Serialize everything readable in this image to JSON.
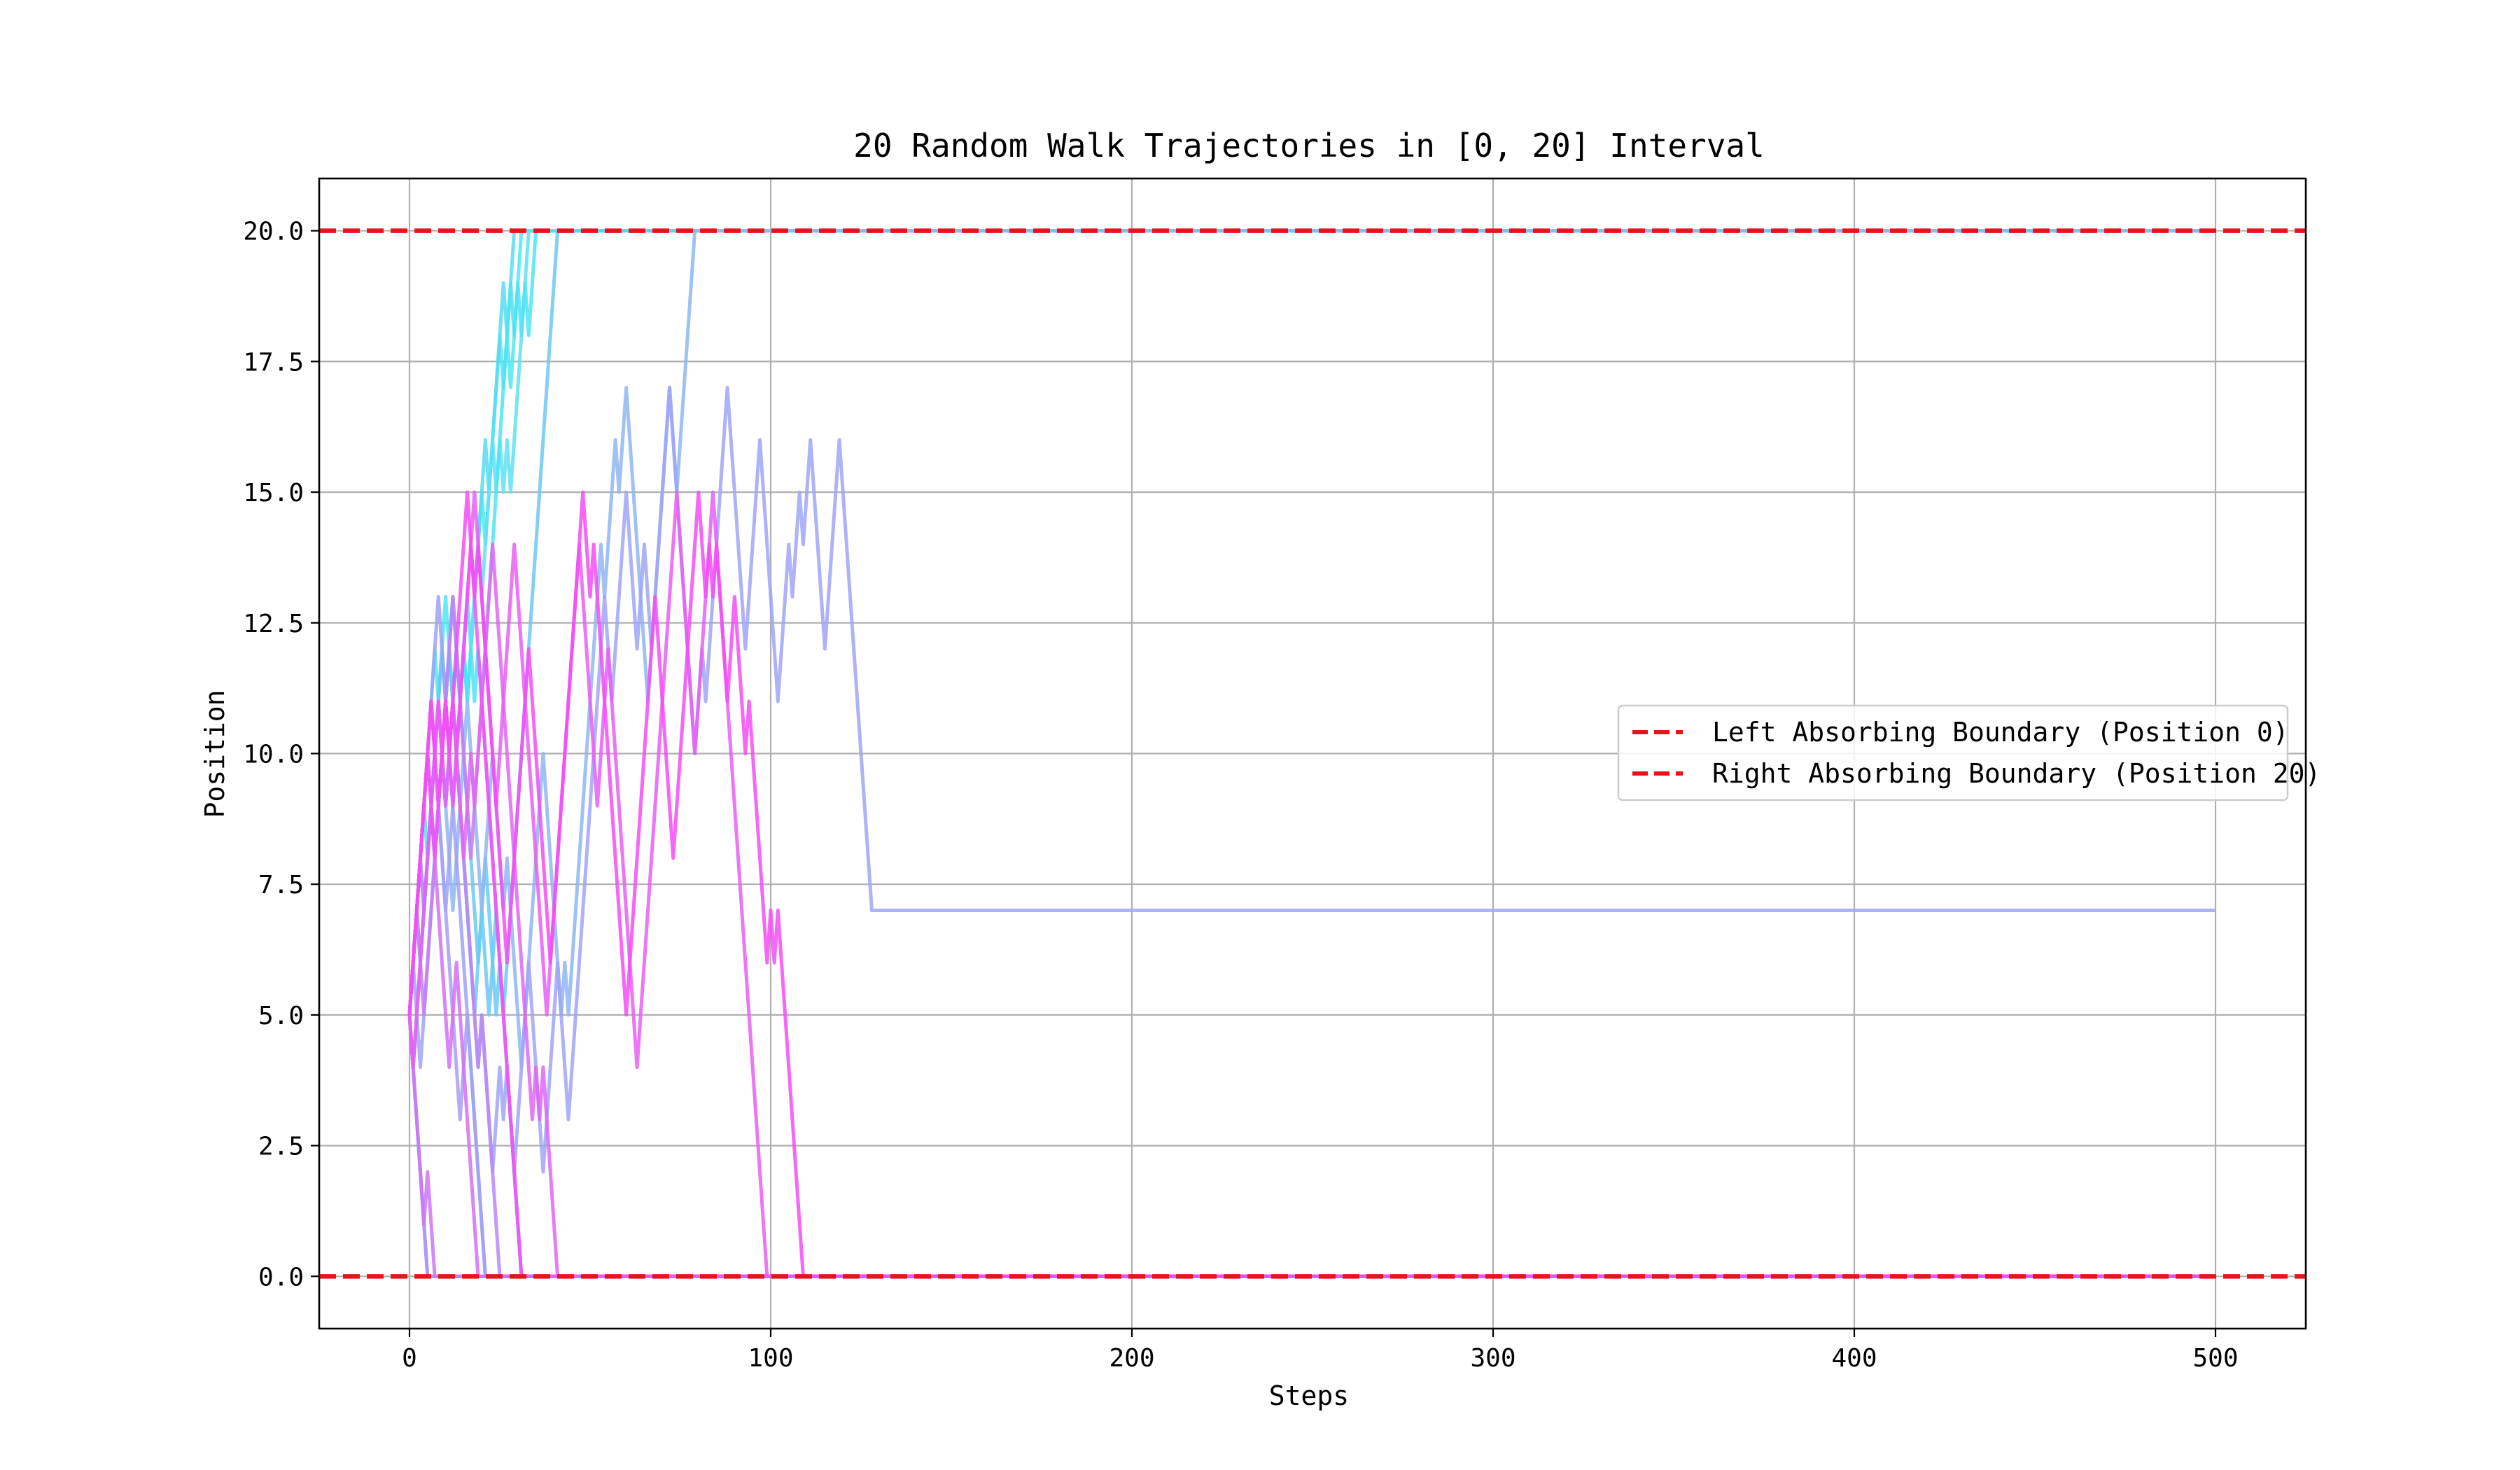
{
  "chart_data": {
    "type": "line",
    "title": "20 Random Walk Trajectories in [0, 20] Interval",
    "xlabel": "Steps",
    "ylabel": "Position",
    "xlim": [
      -25,
      525
    ],
    "ylim": [
      -1,
      21
    ],
    "xticks": [
      0,
      100,
      200,
      300,
      400,
      500
    ],
    "xtick_labels": [
      "0",
      "100",
      "200",
      "300",
      "400",
      "500"
    ],
    "yticks": [
      0,
      2.5,
      5,
      7.5,
      10,
      12.5,
      15,
      17.5,
      20
    ],
    "ytick_labels": [
      "0.0",
      "2.5",
      "5.0",
      "7.5",
      "10.0",
      "12.5",
      "15.0",
      "17.5",
      "20.0"
    ],
    "grid": true,
    "legend_position": "center-right",
    "boundaries": [
      {
        "name": "Left Absorbing Boundary (Position 0)",
        "y": 0,
        "color": "#e8141c",
        "style": "dashed"
      },
      {
        "name": "Right Absorbing Boundary (Position 20)",
        "y": 20,
        "color": "#e8141c",
        "style": "dashed"
      }
    ],
    "series": [
      {
        "color": "#4fe8f2",
        "values": [
          5,
          6,
          7,
          8,
          9,
          10,
          11,
          12,
          11,
          12,
          13,
          12,
          13,
          12,
          11,
          12,
          11,
          12,
          13,
          14,
          15,
          14,
          15,
          16,
          17,
          18,
          17,
          18,
          17,
          18,
          19,
          20
        ]
      },
      {
        "color": "#57dcf2",
        "values": [
          5,
          6,
          7,
          6,
          7,
          8,
          9,
          8,
          9,
          10,
          9,
          10,
          11,
          10,
          11,
          12,
          11,
          12,
          13,
          14,
          15,
          16,
          15,
          16,
          17,
          18,
          19,
          18,
          19,
          20
        ]
      },
      {
        "color": "#5ee2f3",
        "values": [
          5,
          4,
          5,
          6,
          7,
          8,
          9,
          8,
          9,
          10,
          11,
          12,
          11,
          12,
          11,
          12,
          13,
          12,
          13,
          14,
          13,
          14,
          15,
          16,
          15,
          16,
          15,
          16,
          15,
          16,
          17,
          18,
          19,
          20
        ]
      },
      {
        "color": "#4de4f2",
        "values": [
          5,
          6,
          7,
          8,
          9,
          8,
          9,
          10,
          11,
          12,
          11,
          12,
          11,
          12,
          11,
          12,
          11,
          12,
          11,
          12,
          11,
          12,
          13,
          14,
          15,
          16,
          17,
          18,
          19,
          18,
          19,
          18,
          19,
          18,
          19,
          20
        ]
      },
      {
        "color": "#6cc8f4",
        "values": [
          5,
          6,
          7,
          8,
          9,
          10,
          9,
          10,
          11,
          12,
          11,
          12,
          13,
          12,
          11,
          10,
          9,
          8,
          7,
          6,
          7,
          6,
          5,
          6,
          7,
          6,
          5,
          6,
          7,
          8,
          9,
          10,
          11,
          12,
          13,
          14,
          15,
          16,
          17,
          18,
          19,
          20
        ]
      },
      {
        "color": "#66cdf2",
        "values": [
          5,
          6,
          7,
          8,
          7,
          8,
          9,
          8,
          9,
          10,
          11,
          12,
          11,
          10,
          9,
          8,
          7,
          6,
          5,
          6,
          7,
          8,
          7,
          6,
          5,
          6,
          5,
          4,
          3,
          2,
          1,
          0
        ]
      },
      {
        "color": "#8fb6f2",
        "values": [
          5,
          4,
          5,
          6,
          7,
          8,
          9,
          10,
          11,
          10,
          9,
          8,
          7,
          8,
          9,
          10,
          11,
          10,
          9,
          8,
          7,
          8,
          9,
          10,
          9,
          8,
          7,
          8,
          7,
          6,
          5,
          4,
          5,
          6,
          7,
          8,
          9,
          10,
          9,
          8,
          7,
          6,
          5,
          6,
          5,
          6,
          7,
          8,
          9,
          10,
          11,
          12,
          13,
          14,
          13,
          14,
          15,
          16,
          15,
          16,
          17,
          16,
          15,
          14,
          13,
          12,
          11,
          12,
          13,
          14,
          15,
          16,
          17,
          16,
          15,
          16,
          17,
          18,
          19,
          20
        ]
      },
      {
        "color": "#9aa9f3",
        "values": [
          5,
          4,
          3,
          2,
          1,
          0
        ]
      },
      {
        "color": "#a79df3",
        "values": [
          5,
          6,
          7,
          8,
          9,
          10,
          11,
          10,
          9,
          8,
          7,
          6,
          5,
          4,
          3,
          4,
          5,
          4,
          3,
          2,
          1,
          0
        ]
      },
      {
        "color": "#a0a4f5",
        "values": [
          5,
          6,
          5,
          4,
          5,
          6,
          7,
          8,
          9,
          8,
          7,
          8,
          9,
          10,
          9,
          8,
          7,
          6,
          5,
          4,
          5,
          4,
          3,
          2,
          3,
          4,
          3,
          4,
          3,
          2,
          3,
          4,
          5,
          6,
          5,
          4,
          3,
          2,
          3,
          4,
          5,
          6,
          5,
          4,
          3,
          4,
          5,
          6,
          7,
          8,
          9,
          10,
          11,
          12,
          13,
          12,
          11,
          12,
          13,
          14,
          15,
          14,
          13,
          12,
          13,
          14,
          13,
          12,
          13,
          14,
          15,
          16,
          17,
          16,
          15,
          14,
          13,
          12,
          11,
          10,
          11,
          12,
          11,
          12,
          13,
          14,
          15,
          16,
          17,
          16,
          15,
          14,
          13,
          12,
          13,
          14,
          15,
          16,
          15,
          14,
          13,
          12,
          11,
          12,
          13,
          14,
          13,
          14,
          15,
          14,
          15,
          16,
          15,
          14,
          13,
          12,
          13,
          14,
          15,
          16,
          15,
          14,
          13,
          12,
          11,
          10,
          9,
          8,
          7
        ]
      },
      {
        "color": "#9fa2f6",
        "values": [
          5,
          6,
          7,
          8,
          9,
          10,
          11,
          12,
          13,
          12,
          11,
          10,
          9,
          8,
          7,
          6,
          5,
          4,
          3,
          2,
          1,
          0
        ]
      },
      {
        "color": "#b094f4",
        "values": [
          5,
          4,
          3,
          2,
          1,
          0
        ]
      },
      {
        "color": "#bb87f4",
        "values": [
          5,
          6,
          7,
          8,
          7,
          8,
          9,
          10,
          11,
          10,
          9,
          10,
          11,
          10,
          9,
          8,
          7,
          6,
          5,
          4,
          5,
          4,
          3,
          2,
          1,
          0
        ]
      },
      {
        "color": "#c47ef4",
        "values": [
          5,
          6,
          7,
          6,
          5,
          6,
          7,
          8,
          9,
          10,
          11,
          12,
          13,
          12,
          11,
          10,
          9,
          8,
          9,
          10,
          11,
          10,
          9,
          8,
          7,
          6,
          5,
          4,
          3,
          2,
          1,
          0
        ]
      },
      {
        "color": "#cb78f5",
        "values": [
          5,
          4,
          3,
          2,
          1,
          2,
          1,
          0
        ]
      },
      {
        "color": "#d470f5",
        "values": [
          5,
          6,
          7,
          8,
          9,
          10,
          9,
          8,
          7,
          6,
          5,
          4,
          5,
          6,
          5,
          4,
          3,
          2,
          1,
          0
        ]
      },
      {
        "color": "#df66f5",
        "values": [
          5,
          6,
          7,
          8,
          9,
          10,
          11,
          10,
          11,
          10,
          9,
          10,
          11,
          10,
          9,
          8,
          9,
          10,
          9,
          10,
          11,
          12,
          13,
          14,
          13,
          12,
          11,
          10,
          9,
          8,
          7,
          6,
          5,
          4,
          3,
          4,
          3,
          4,
          3,
          2,
          1,
          0
        ]
      },
      {
        "color": "#e75ef5",
        "values": [
          5,
          4,
          5,
          6,
          7,
          8,
          9,
          10,
          11,
          10,
          11,
          10,
          11,
          10,
          11,
          12,
          13,
          14,
          15,
          14,
          13,
          12,
          11,
          10,
          9,
          10,
          11,
          12,
          13,
          14,
          13,
          12,
          11,
          10,
          9,
          8,
          7,
          6,
          5,
          6,
          7,
          8,
          9,
          10,
          11,
          12,
          13,
          14,
          13,
          12,
          11,
          10,
          9,
          10,
          11,
          12,
          11,
          10,
          9,
          8,
          7,
          6,
          5,
          4,
          5,
          6,
          7,
          8,
          9,
          10,
          11,
          12,
          13,
          14,
          15,
          14,
          13,
          12,
          11,
          10,
          11,
          12,
          13,
          14,
          15,
          14,
          13,
          12,
          11,
          10,
          9,
          8,
          7,
          6,
          5,
          4,
          3,
          2,
          1,
          0
        ]
      },
      {
        "color": "#ee55f6",
        "values": [
          5,
          6,
          7,
          8,
          9,
          10,
          9,
          8,
          9,
          10,
          11,
          10,
          9,
          10,
          11,
          12,
          13,
          14,
          13,
          12,
          11,
          10,
          9,
          8,
          7,
          6,
          5,
          4,
          3,
          2,
          1,
          0
        ]
      },
      {
        "color": "#f44cf6",
        "values": [
          5,
          6,
          7,
          8,
          9,
          10,
          11,
          10,
          9,
          10,
          11,
          10,
          11,
          12,
          13,
          14,
          15,
          14,
          13,
          14,
          13,
          12,
          11,
          10,
          9,
          8,
          7,
          6,
          7,
          8,
          9,
          10,
          11,
          12,
          11,
          10,
          9,
          8,
          7,
          6,
          7,
          8,
          9,
          10,
          11,
          12,
          13,
          14,
          15,
          14,
          13,
          14,
          13,
          12,
          11,
          10,
          9,
          8,
          7,
          6,
          5,
          6,
          7,
          8,
          9,
          10,
          11,
          12,
          13,
          12,
          11,
          10,
          9,
          8,
          9,
          10,
          11,
          12,
          13,
          14,
          15,
          14,
          13,
          14,
          13,
          14,
          13,
          12,
          11,
          12,
          13,
          12,
          11,
          10,
          11,
          10,
          9,
          8,
          7,
          6,
          7,
          6,
          7,
          6,
          5,
          4,
          3,
          2,
          1,
          0
        ]
      }
    ]
  }
}
